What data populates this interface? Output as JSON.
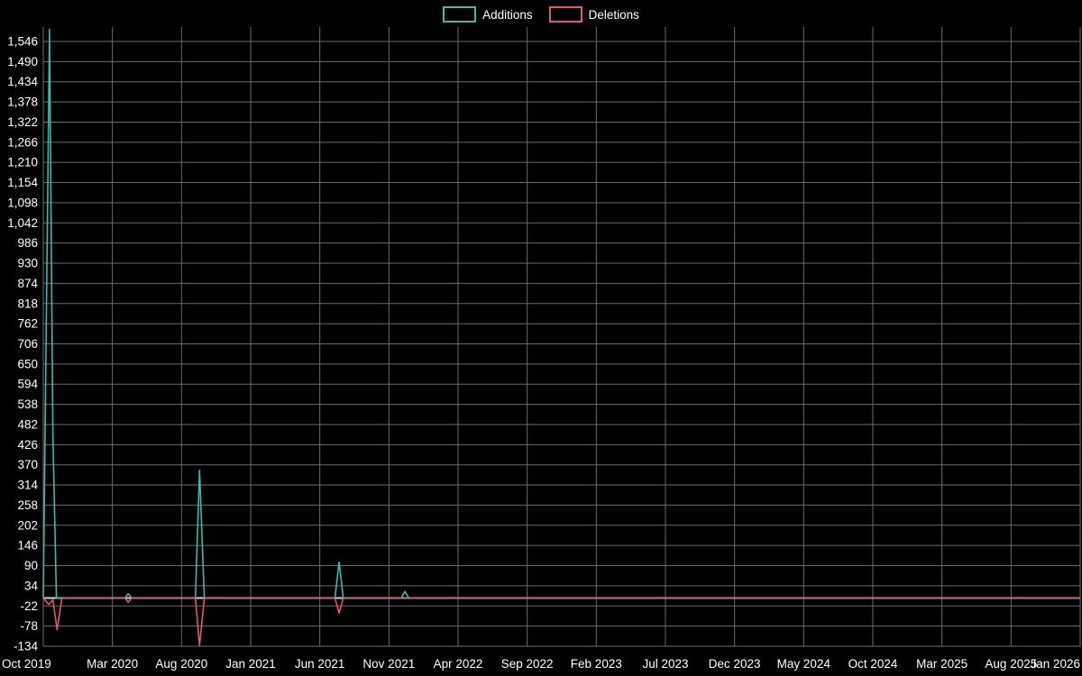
{
  "chart_data": {
    "type": "line",
    "title": "",
    "legend": [
      {
        "name": "Additions",
        "color": "#3fb8af"
      },
      {
        "name": "Deletions",
        "color": "#e25867"
      }
    ],
    "x_axis": {
      "tick_labels": [
        "Oct 2019",
        "Mar 2020",
        "Aug 2020",
        "Jan 2021",
        "Jun 2021",
        "Nov 2021",
        "Apr 2022",
        "Sep 2022",
        "Feb 2023",
        "Jul 2023",
        "Dec 2023",
        "May 2024",
        "Oct 2024",
        "Mar 2025",
        "Aug 2025",
        "Jan 2026"
      ],
      "tick_interval_months": 5
    },
    "y_axis": {
      "tick_labels": [
        "1,546",
        "1,490",
        "1,434",
        "1,378",
        "1,322",
        "1,266",
        "1,210",
        "1,154",
        "1,098",
        "1,042",
        "986",
        "930",
        "874",
        "818",
        "762",
        "706",
        "650",
        "594",
        "538",
        "482",
        "426",
        "370",
        "314",
        "258",
        "202",
        "146",
        "90",
        "34",
        "-22",
        "-78",
        "-134"
      ],
      "tick_values": [
        1546,
        1490,
        1434,
        1378,
        1322,
        1266,
        1210,
        1154,
        1098,
        1042,
        986,
        930,
        874,
        818,
        762,
        706,
        650,
        594,
        538,
        482,
        426,
        370,
        314,
        258,
        202,
        146,
        90,
        34,
        -22,
        -78,
        -134
      ]
    },
    "ylim": [
      -134,
      1586
    ],
    "xlim_months": [
      0,
      75
    ],
    "grid": true,
    "grid_color": "#6b6b6b",
    "zero_line_color": "#d0d0d0",
    "axis_text_color": "#ffffff",
    "series": [
      {
        "name": "Additions",
        "color": "#3fb8af",
        "points": [
          [
            0,
            0
          ],
          [
            0.45,
            1580
          ],
          [
            0.7,
            450
          ],
          [
            0.95,
            0
          ],
          [
            5.9,
            0
          ],
          [
            6.15,
            12
          ],
          [
            6.4,
            0
          ],
          [
            11.0,
            0
          ],
          [
            11.3,
            355
          ],
          [
            11.65,
            0
          ],
          [
            21.1,
            0
          ],
          [
            21.4,
            100
          ],
          [
            21.7,
            0
          ],
          [
            25.9,
            0
          ],
          [
            26.15,
            18
          ],
          [
            26.45,
            0
          ],
          [
            75,
            0
          ]
        ]
      },
      {
        "name": "Deletions",
        "color": "#e25867",
        "points": [
          [
            0,
            0
          ],
          [
            0.4,
            -18
          ],
          [
            0.7,
            -5
          ],
          [
            1.0,
            -88
          ],
          [
            1.35,
            0
          ],
          [
            5.9,
            0
          ],
          [
            6.15,
            -12
          ],
          [
            6.4,
            0
          ],
          [
            11.0,
            0
          ],
          [
            11.3,
            -132
          ],
          [
            11.65,
            0
          ],
          [
            21.1,
            0
          ],
          [
            21.4,
            -42
          ],
          [
            21.7,
            0
          ],
          [
            75,
            0
          ]
        ]
      }
    ]
  }
}
